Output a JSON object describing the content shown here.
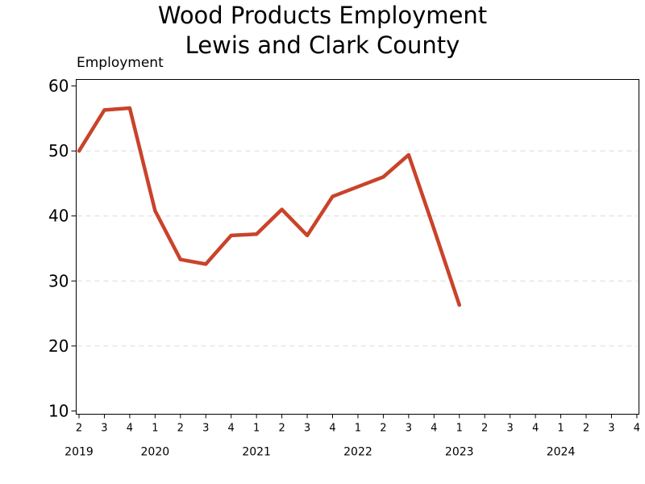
{
  "chart_data": {
    "type": "line",
    "title": [
      "Wood Products Employment",
      "Lewis and Clark County"
    ],
    "ylabel": "Employment",
    "xlabel": "",
    "ylim": [
      9.5,
      61
    ],
    "yticks": [
      10,
      20,
      30,
      40,
      50,
      60
    ],
    "grid": "horizontal dashed",
    "x_ticks": [
      "2",
      "3",
      "4",
      "1",
      "2",
      "3",
      "4",
      "1",
      "2",
      "3",
      "4",
      "1",
      "2",
      "3",
      "4",
      "1",
      "2",
      "3",
      "4",
      "1",
      "2",
      "3",
      "4"
    ],
    "year_labels": [
      {
        "year": "2019",
        "tick_index": 0
      },
      {
        "year": "2020",
        "tick_index": 3
      },
      {
        "year": "2021",
        "tick_index": 7
      },
      {
        "year": "2022",
        "tick_index": 11
      },
      {
        "year": "2023",
        "tick_index": 15
      },
      {
        "year": "2024",
        "tick_index": 19
      }
    ],
    "series": [
      {
        "color": "#c9432a",
        "points": [
          {
            "x": "2019 Q2",
            "y": 50
          },
          {
            "x": "2019 Q3",
            "y": 56.3
          },
          {
            "x": "2019 Q4",
            "y": 56.6
          },
          {
            "x": "2020 Q1",
            "y": 40.8
          },
          {
            "x": "2020 Q2",
            "y": 33.3
          },
          {
            "x": "2020 Q3",
            "y": 32.6
          },
          {
            "x": "2020 Q4",
            "y": 37.0
          },
          {
            "x": "2021 Q1",
            "y": 37.2
          },
          {
            "x": "2021 Q2",
            "y": 41.0
          },
          {
            "x": "2021 Q3",
            "y": 37.0
          },
          {
            "x": "2021 Q4",
            "y": 43.0
          },
          {
            "x": "2022 Q1",
            "y": 44.5
          },
          {
            "x": "2022 Q2",
            "y": 46.0
          },
          {
            "x": "2022 Q3",
            "y": 49.4
          },
          {
            "x": "2022 Q4",
            "y": 38.0
          },
          {
            "x": "2023 Q1",
            "y": 26.3
          }
        ]
      }
    ]
  }
}
